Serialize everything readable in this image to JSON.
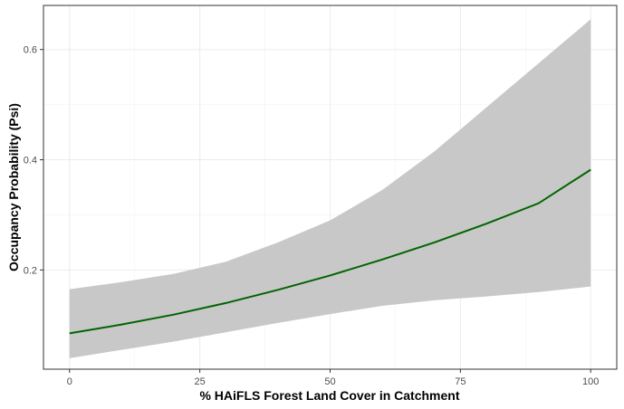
{
  "chart_data": {
    "type": "line",
    "title": "",
    "xlabel": "% HAiFLS Forest Land Cover in Catchment",
    "ylabel": "Occupancy Probability (Psi)",
    "xlim": [
      -5,
      105
    ],
    "ylim": [
      0.02,
      0.68
    ],
    "x_ticks": [
      0,
      25,
      50,
      75,
      100
    ],
    "x_tick_labels": [
      "0",
      "25",
      "50",
      "75",
      "100"
    ],
    "y_ticks": [
      0.2,
      0.4,
      0.6
    ],
    "y_tick_labels": [
      "0.2",
      "0.4",
      "0.6"
    ],
    "grid": true,
    "legend": "none",
    "series": [
      {
        "type": "line",
        "color": "#006400",
        "x": [
          0,
          10,
          20,
          30,
          40,
          50,
          60,
          70,
          80,
          90,
          100
        ],
        "y": [
          0.085,
          0.101,
          0.119,
          0.14,
          0.164,
          0.19,
          0.219,
          0.25,
          0.284,
          0.321,
          0.382
        ]
      },
      {
        "type": "ribbon",
        "color": "#c8c8c8",
        "x": [
          0,
          10,
          20,
          30,
          40,
          50,
          60,
          70,
          80,
          90,
          100
        ],
        "lower": [
          0.04,
          0.055,
          0.07,
          0.087,
          0.104,
          0.12,
          0.135,
          0.145,
          0.152,
          0.16,
          0.17
        ],
        "upper": [
          0.165,
          0.178,
          0.193,
          0.215,
          0.25,
          0.29,
          0.345,
          0.415,
          0.495,
          0.575,
          0.655
        ]
      }
    ]
  }
}
